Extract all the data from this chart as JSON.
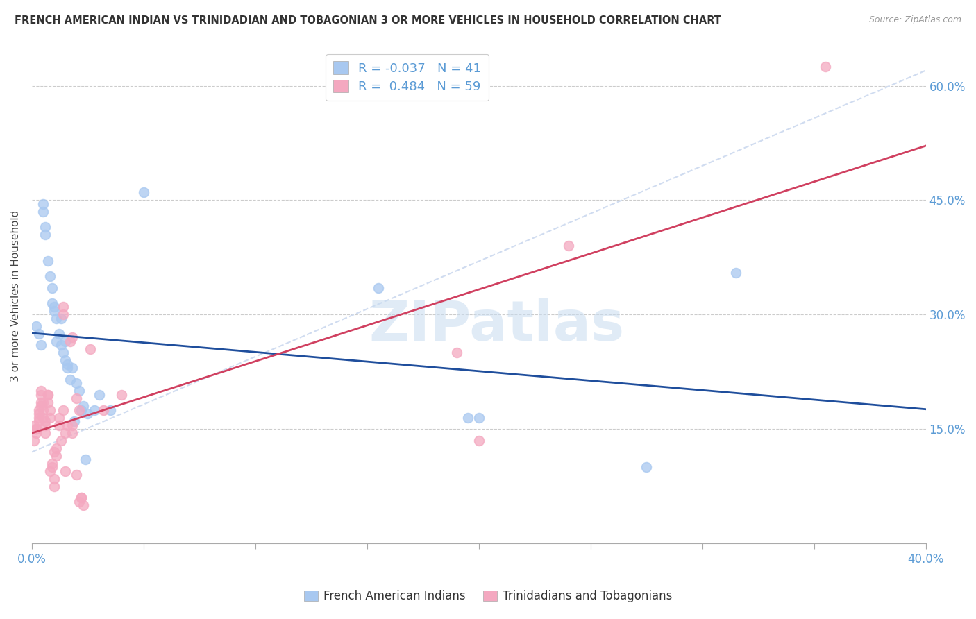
{
  "title": "FRENCH AMERICAN INDIAN VS TRINIDADIAN AND TOBAGONIAN 3 OR MORE VEHICLES IN HOUSEHOLD CORRELATION CHART",
  "source": "Source: ZipAtlas.com",
  "ylabel": "3 or more Vehicles in Household",
  "ylim": [
    0.0,
    0.65
  ],
  "xlim": [
    0.0,
    0.4
  ],
  "ytick_vals": [
    0.0,
    0.15,
    0.3,
    0.45,
    0.6
  ],
  "xtick_vals": [
    0.0,
    0.05,
    0.1,
    0.15,
    0.2,
    0.25,
    0.3,
    0.35,
    0.4
  ],
  "watermark": "ZIPatlas",
  "legend_R_blue": "-0.037",
  "legend_N_blue": "41",
  "legend_R_pink": "0.484",
  "legend_N_pink": "59",
  "blue_color": "#A8C8F0",
  "pink_color": "#F4A8C0",
  "blue_line_color": "#1F4E9C",
  "pink_line_color": "#D04060",
  "dash_line_color": "#D0DCF0",
  "blue_scatter": [
    [
      0.002,
      0.285
    ],
    [
      0.003,
      0.275
    ],
    [
      0.004,
      0.26
    ],
    [
      0.005,
      0.435
    ],
    [
      0.005,
      0.445
    ],
    [
      0.006,
      0.415
    ],
    [
      0.006,
      0.405
    ],
    [
      0.007,
      0.37
    ],
    [
      0.008,
      0.35
    ],
    [
      0.009,
      0.335
    ],
    [
      0.009,
      0.315
    ],
    [
      0.01,
      0.305
    ],
    [
      0.01,
      0.31
    ],
    [
      0.011,
      0.295
    ],
    [
      0.011,
      0.265
    ],
    [
      0.012,
      0.275
    ],
    [
      0.013,
      0.295
    ],
    [
      0.013,
      0.26
    ],
    [
      0.014,
      0.25
    ],
    [
      0.015,
      0.265
    ],
    [
      0.015,
      0.24
    ],
    [
      0.016,
      0.23
    ],
    [
      0.016,
      0.235
    ],
    [
      0.017,
      0.215
    ],
    [
      0.018,
      0.23
    ],
    [
      0.019,
      0.16
    ],
    [
      0.02,
      0.21
    ],
    [
      0.021,
      0.2
    ],
    [
      0.022,
      0.175
    ],
    [
      0.023,
      0.18
    ],
    [
      0.024,
      0.11
    ],
    [
      0.025,
      0.17
    ],
    [
      0.028,
      0.175
    ],
    [
      0.03,
      0.195
    ],
    [
      0.035,
      0.175
    ],
    [
      0.05,
      0.46
    ],
    [
      0.155,
      0.335
    ],
    [
      0.195,
      0.165
    ],
    [
      0.2,
      0.165
    ],
    [
      0.275,
      0.1
    ],
    [
      0.315,
      0.355
    ]
  ],
  "pink_scatter": [
    [
      0.001,
      0.135
    ],
    [
      0.001,
      0.155
    ],
    [
      0.002,
      0.145
    ],
    [
      0.002,
      0.15
    ],
    [
      0.002,
      0.15
    ],
    [
      0.003,
      0.175
    ],
    [
      0.003,
      0.165
    ],
    [
      0.003,
      0.16
    ],
    [
      0.003,
      0.17
    ],
    [
      0.004,
      0.195
    ],
    [
      0.004,
      0.185
    ],
    [
      0.004,
      0.18
    ],
    [
      0.004,
      0.2
    ],
    [
      0.005,
      0.185
    ],
    [
      0.005,
      0.175
    ],
    [
      0.005,
      0.165
    ],
    [
      0.006,
      0.16
    ],
    [
      0.006,
      0.155
    ],
    [
      0.006,
      0.145
    ],
    [
      0.007,
      0.195
    ],
    [
      0.007,
      0.195
    ],
    [
      0.007,
      0.185
    ],
    [
      0.008,
      0.175
    ],
    [
      0.008,
      0.165
    ],
    [
      0.008,
      0.095
    ],
    [
      0.009,
      0.1
    ],
    [
      0.009,
      0.105
    ],
    [
      0.01,
      0.085
    ],
    [
      0.01,
      0.075
    ],
    [
      0.01,
      0.12
    ],
    [
      0.011,
      0.115
    ],
    [
      0.011,
      0.125
    ],
    [
      0.012,
      0.155
    ],
    [
      0.012,
      0.165
    ],
    [
      0.013,
      0.135
    ],
    [
      0.014,
      0.175
    ],
    [
      0.014,
      0.31
    ],
    [
      0.014,
      0.3
    ],
    [
      0.015,
      0.095
    ],
    [
      0.015,
      0.145
    ],
    [
      0.016,
      0.155
    ],
    [
      0.017,
      0.265
    ],
    [
      0.018,
      0.27
    ],
    [
      0.018,
      0.145
    ],
    [
      0.018,
      0.155
    ],
    [
      0.02,
      0.09
    ],
    [
      0.02,
      0.19
    ],
    [
      0.021,
      0.175
    ],
    [
      0.021,
      0.055
    ],
    [
      0.022,
      0.06
    ],
    [
      0.022,
      0.06
    ],
    [
      0.023,
      0.05
    ],
    [
      0.026,
      0.255
    ],
    [
      0.032,
      0.175
    ],
    [
      0.04,
      0.195
    ],
    [
      0.19,
      0.25
    ],
    [
      0.2,
      0.135
    ],
    [
      0.24,
      0.39
    ],
    [
      0.355,
      0.625
    ]
  ]
}
